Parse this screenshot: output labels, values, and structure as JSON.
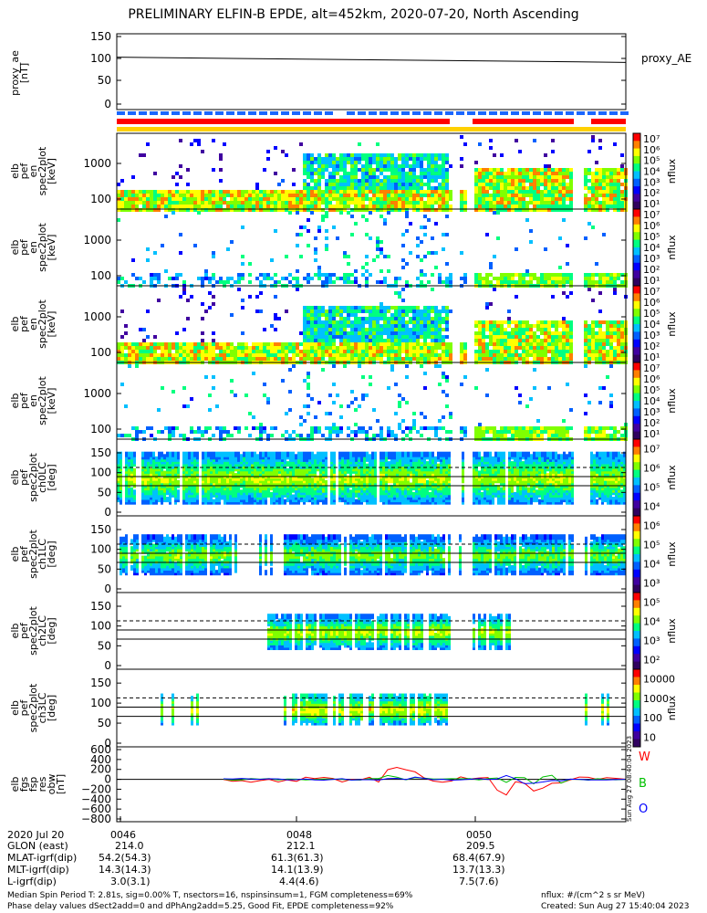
{
  "title": "PRELIMINARY ELFIN-B EPDE, alt=452km, 2020-07-20, North Ascending",
  "colors": {
    "red": "#ff0000",
    "blue": "#1a66ff",
    "yellow": "#ffd000",
    "green": "#00c000",
    "navy": "#0000ff"
  },
  "panels": [
    {
      "id": "proxy-ae",
      "ylabel": [
        "proxy_ae",
        "[nT]"
      ],
      "right_label": "proxy_AE",
      "yticks": [
        "150",
        "100",
        "50",
        "0"
      ]
    },
    {
      "id": "en-nflux-1",
      "ylabel": [
        "elb",
        "pef",
        "en",
        "spec2plot",
        "[keV]"
      ],
      "yticks": [
        "1000",
        "100"
      ],
      "cbar_label": "nflux",
      "cbar_ticks": [
        "10⁷",
        "10⁶",
        "10⁵",
        "10⁴",
        "10³",
        "10²",
        "10¹"
      ]
    },
    {
      "id": "en-nflux-2",
      "ylabel": [
        "elb",
        "pef",
        "en",
        "spec2plot",
        "[keV]"
      ],
      "yticks": [
        "1000",
        "100"
      ],
      "cbar_label": "nflux",
      "cbar_ticks": [
        "10⁷",
        "10⁶",
        "10⁵",
        "10⁴",
        "10³",
        "10²",
        "10¹"
      ]
    },
    {
      "id": "en-nflux-3",
      "ylabel": [
        "elb",
        "pef",
        "en",
        "spec2plot",
        "[keV]"
      ],
      "yticks": [
        "1000",
        "100"
      ],
      "cbar_label": "nflux",
      "cbar_ticks": [
        "10⁷",
        "10⁶",
        "10⁵",
        "10⁴",
        "10³",
        "10²",
        "10¹"
      ]
    },
    {
      "id": "en-nflux-4",
      "ylabel": [
        "elb",
        "pef",
        "en",
        "spec2plot",
        "[keV]"
      ],
      "yticks": [
        "1000",
        "100"
      ],
      "cbar_label": "nflux",
      "cbar_ticks": [
        "10⁷",
        "10⁶",
        "10⁵",
        "10⁴",
        "10³",
        "10²",
        "10¹"
      ]
    },
    {
      "id": "pa-ch0",
      "ylabel": [
        "elb",
        "pef",
        "spec2plot",
        "ch0LC",
        "[deg]"
      ],
      "yticks": [
        "150",
        "100",
        "50",
        "0"
      ],
      "cbar_label": "nflux",
      "cbar_ticks": [
        "10⁷",
        "10⁶",
        "10⁵",
        "10⁴"
      ]
    },
    {
      "id": "pa-ch1",
      "ylabel": [
        "elb",
        "pef",
        "spec2plot",
        "ch1LC",
        "[deg]"
      ],
      "yticks": [
        "150",
        "100",
        "50",
        "0"
      ],
      "cbar_label": "nflux",
      "cbar_ticks": [
        "10⁶",
        "10⁵",
        "10⁴",
        "10³"
      ]
    },
    {
      "id": "pa-ch2",
      "ylabel": [
        "elb",
        "pef",
        "spec2plot",
        "ch2LC",
        "[deg]"
      ],
      "yticks": [
        "150",
        "100",
        "50",
        "0"
      ],
      "cbar_label": "nflux",
      "cbar_ticks": [
        "10⁵",
        "10⁴",
        "10³",
        "10²"
      ]
    },
    {
      "id": "pa-ch3",
      "ylabel": [
        "elb",
        "pef",
        "spec2plot",
        "ch3LC",
        "[deg]"
      ],
      "yticks": [
        "150",
        "100",
        "50",
        "0"
      ],
      "cbar_label": "nflux",
      "cbar_ticks": [
        "10000",
        "1000",
        "100",
        "10"
      ]
    },
    {
      "id": "fgm-res",
      "ylabel": [
        "elb",
        "fgs",
        "fsp",
        "res",
        "obw",
        "[nT]"
      ],
      "yticks": [
        "600",
        "400",
        "200",
        "0",
        "−200",
        "−400",
        "−600",
        "−800"
      ],
      "legend": [
        "W",
        "B",
        "O"
      ],
      "side_note": "Sun Aug 27 08:40:04 2023"
    }
  ],
  "chart_data": {
    "type": "heatmap",
    "title": "PRELIMINARY ELFIN-B EPDE, alt=452km, 2020-07-20, North Ascending",
    "time_ticks": [
      "0046",
      "0048",
      "0050"
    ],
    "proxy_ae": {
      "x": [
        "start",
        "end"
      ],
      "values": [
        100,
        89
      ],
      "ylim": [
        0,
        150
      ]
    },
    "energy_range_keV": [
      50,
      5000
    ],
    "pitch_angle_range_deg": [
      0,
      180
    ],
    "fgm_residual_ylim": [
      -800,
      600
    ]
  },
  "footer": {
    "rows": [
      {
        "label": "2020 Jul 20",
        "values": [
          "0046",
          "0048",
          "0050"
        ]
      },
      {
        "label": "GLON (east)",
        "values": [
          "214.0",
          "212.1",
          "209.5"
        ]
      },
      {
        "label": "MLAT-igrf(dip)",
        "values": [
          "54.2(54.3)",
          "61.3(61.3)",
          "68.4(67.9)"
        ]
      },
      {
        "label": "MLT-igrf(dip)",
        "values": [
          "14.3(14.3)",
          "14.1(13.9)",
          "13.7(13.3)"
        ]
      },
      {
        "label": "L-igrf(dip)",
        "values": [
          "3.0(3.1)",
          "4.4(4.6)",
          "7.5(7.6)"
        ]
      }
    ],
    "note1": "Median Spin Period T: 2.81s, sig=0.00% T, nsectors=16, nspinsinsum=1, FGM completeness=69%",
    "note2": "Phase delay values dSect2add=0 and dPhAng2add=5.25, Good Fit, EPDE completeness=92%",
    "units": "nflux: #/(cm^2 s sr MeV)",
    "created": "Created: Sun Aug 27 15:40:04 2023"
  }
}
